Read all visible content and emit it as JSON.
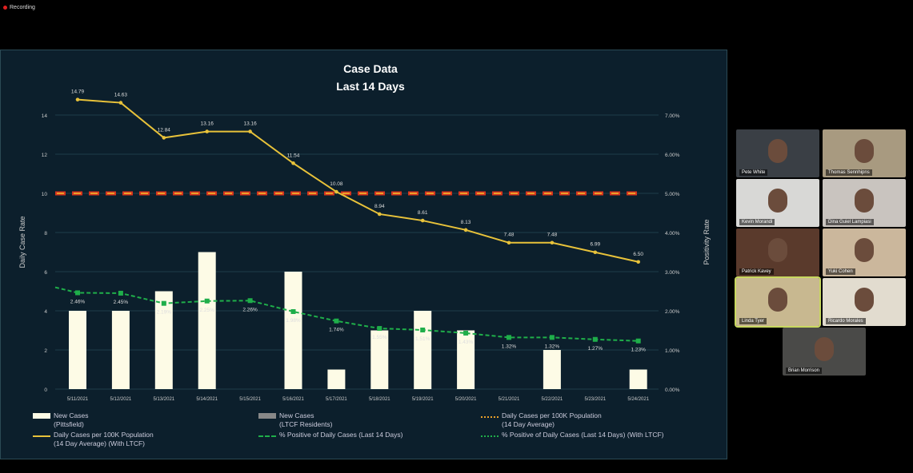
{
  "recording": {
    "label": "Recording"
  },
  "chart_data": {
    "type": "bar",
    "title": "Case Data",
    "subtitle": "Last 14 Days",
    "ylabel": "Daily Case Rate",
    "y2label": "Positivity Rate",
    "ylim": [
      0,
      14
    ],
    "y2lim": [
      0,
      7
    ],
    "yticks": [
      "0",
      "2",
      "4",
      "6",
      "8",
      "10",
      "12",
      "14"
    ],
    "y2ticks": [
      "0.00%",
      "1.00%",
      "2.00%",
      "3.00%",
      "4.00%",
      "5.00%",
      "6.00%",
      "7.00%"
    ],
    "categories": [
      "5/11/2021",
      "5/12/2021",
      "5/13/2021",
      "5/14/2021",
      "5/15/2021",
      "5/16/2021",
      "5/17/2021",
      "5/18/2021",
      "5/19/2021",
      "5/20/2021",
      "5/21/2021",
      "5/22/2021",
      "5/23/2021",
      "5/24/2021"
    ],
    "threshold": 10,
    "series": [
      {
        "name": "New Cases (Pittsfield)",
        "type": "bar",
        "values": [
          4,
          4,
          5,
          7,
          0,
          6,
          1,
          3,
          4,
          3,
          0,
          2,
          0,
          1
        ]
      },
      {
        "name": "Daily Cases per 100K Population (14 Day Average) (With LTCF)",
        "type": "line",
        "values": [
          14.79,
          14.63,
          12.84,
          13.16,
          13.16,
          11.54,
          10.08,
          8.94,
          8.61,
          8.13,
          7.48,
          7.48,
          6.99,
          6.5
        ],
        "labels": [
          "14.79",
          "14.63",
          "12.84",
          "13.16",
          "13.16",
          "11.54",
          "10.08",
          "8.94",
          "8.61",
          "8.13",
          "7.48",
          "7.48",
          "6.99",
          "6.50"
        ]
      },
      {
        "name": "% Positive of Daily Cases (Last 14 Days)",
        "type": "line",
        "axis": "right",
        "values": [
          2.46,
          2.45,
          2.19,
          2.25,
          2.26,
          1.98,
          1.74,
          1.55,
          1.51,
          1.43,
          1.32,
          1.32,
          1.27,
          1.23
        ],
        "labels": [
          "2.46%",
          "2.45%",
          "2.19%",
          "2.25%",
          "2.26%",
          "1.98%",
          "1.74%",
          "1.55%",
          "1.51%",
          "1.43%",
          "1.32%",
          "1.32%",
          "1.27%",
          "1.23%"
        ]
      }
    ],
    "legend": [
      {
        "l1": "New Cases",
        "l2": "(Pittsfield)"
      },
      {
        "l1": "New Cases",
        "l2": "(LTCF Residents)"
      },
      {
        "l1": "Daily Cases per 100K Population",
        "l2": "(14 Day Average)"
      },
      {
        "l1": "Daily Cases per 100K Population",
        "l2": "(14 Day Average) (With LTCF)"
      },
      {
        "l1": "% Positive of Daily Cases (Last 14 Days)",
        "l2": ""
      },
      {
        "l1": "% Positive of Daily Cases (Last 14 Days) (With LTCF)",
        "l2": ""
      }
    ],
    "colors": {
      "bar": "#fdfbe6",
      "line": "#e8c23a",
      "green": "#1fae4a",
      "red": "#d9351e",
      "orange": "#e8a02a",
      "grid": "#1e3c4a"
    }
  },
  "participants": [
    "Pete White",
    "Thomas Sennhipns",
    "Kevin Morandi",
    "Dina Guiel Lampiasi",
    "Patrick Kavey",
    "Yuki Cohen",
    "Linda Tyer",
    "Ricardo Morales",
    "Brian Morrison"
  ]
}
